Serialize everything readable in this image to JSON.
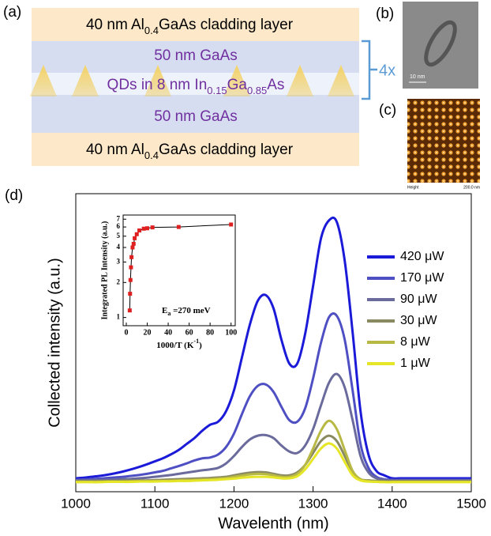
{
  "panel_labels": [
    "(a)",
    "(b)",
    "(c)",
    "(d)"
  ],
  "layers": {
    "top_cladding": [
      "40 nm Al",
      "0.4",
      "GaAs cladding layer"
    ],
    "gaas_top": "50 nm GaAs",
    "qd": [
      "QDs in 8 nm In",
      "0.15",
      "Ga",
      "0.85",
      "As"
    ],
    "gaas_bottom": "50 nm GaAs",
    "bottom_cladding": [
      "40 nm Al",
      "0.4",
      "GaAs cladding layer"
    ],
    "repeat": "4x"
  },
  "images": {
    "tem_scale": "10 nm",
    "afm_left": "Height",
    "afm_right": "200.0 nm"
  },
  "chart_data": [
    {
      "type": "line",
      "x_label": "Wavelenth (nm)",
      "y_label": "Collected intensity (a.u.)",
      "xlim": [
        1000,
        1500
      ],
      "xticks": [
        1000,
        1100,
        1200,
        1300,
        1400,
        1500
      ],
      "ylim": [
        0,
        10
      ],
      "legend": "right",
      "x": [
        1000,
        1010,
        1020,
        1030,
        1040,
        1050,
        1060,
        1070,
        1080,
        1090,
        1100,
        1110,
        1120,
        1130,
        1140,
        1150,
        1160,
        1170,
        1180,
        1190,
        1200,
        1210,
        1220,
        1230,
        1240,
        1250,
        1260,
        1270,
        1280,
        1290,
        1300,
        1310,
        1320,
        1330,
        1340,
        1350,
        1360,
        1370,
        1380,
        1390,
        1400,
        1410,
        1420,
        1430,
        1440,
        1450,
        1460,
        1470,
        1480,
        1490,
        1500
      ],
      "series": [
        {
          "name": "420 μW",
          "color": "#1a1ad8",
          "values": [
            0.45,
            0.47,
            0.5,
            0.53,
            0.57,
            0.62,
            0.68,
            0.75,
            0.83,
            0.92,
            1.02,
            1.12,
            1.25,
            1.4,
            1.6,
            1.8,
            2.05,
            2.25,
            2.35,
            2.7,
            3.4,
            4.5,
            5.6,
            6.4,
            6.6,
            6.15,
            5.1,
            4.3,
            4.3,
            5.3,
            6.9,
            8.5,
            9.1,
            9.05,
            7.75,
            5.35,
            2.7,
            1.25,
            0.7,
            0.55,
            0.45,
            0.45,
            0.45,
            0.45,
            0.45,
            0.45,
            0.45,
            0.45,
            0.45,
            0.45,
            0.45
          ]
        },
        {
          "name": "170 μW",
          "color": "#4f4fc4",
          "values": [
            0.4,
            0.41,
            0.42,
            0.44,
            0.46,
            0.48,
            0.5,
            0.53,
            0.56,
            0.6,
            0.65,
            0.7,
            0.78,
            0.86,
            0.95,
            1.05,
            1.12,
            1.15,
            1.25,
            1.5,
            1.95,
            2.6,
            3.2,
            3.55,
            3.6,
            3.35,
            2.85,
            2.4,
            2.35,
            2.8,
            3.8,
            5.0,
            5.85,
            5.9,
            5.1,
            3.4,
            1.6,
            0.8,
            0.5,
            0.42,
            0.4,
            0.4,
            0.4,
            0.4,
            0.4,
            0.4,
            0.4,
            0.4,
            0.4,
            0.4,
            0.4
          ]
        },
        {
          "name": "90 μW",
          "color": "#6a6a9c",
          "values": [
            0.38,
            0.38,
            0.39,
            0.39,
            0.4,
            0.41,
            0.42,
            0.43,
            0.45,
            0.47,
            0.5,
            0.53,
            0.56,
            0.6,
            0.64,
            0.68,
            0.72,
            0.75,
            0.8,
            0.95,
            1.2,
            1.5,
            1.75,
            1.88,
            1.9,
            1.8,
            1.55,
            1.35,
            1.3,
            1.55,
            2.1,
            2.9,
            3.65,
            3.95,
            3.5,
            2.4,
            1.2,
            0.65,
            0.45,
            0.4,
            0.38,
            0.38,
            0.38,
            0.38,
            0.38,
            0.38,
            0.38,
            0.38,
            0.38,
            0.38,
            0.38
          ]
        },
        {
          "name": "30 μW",
          "color": "#8a8a62",
          "values": [
            0.35,
            0.35,
            0.35,
            0.36,
            0.36,
            0.36,
            0.37,
            0.37,
            0.38,
            0.38,
            0.39,
            0.4,
            0.41,
            0.42,
            0.43,
            0.44,
            0.45,
            0.46,
            0.48,
            0.5,
            0.55,
            0.6,
            0.64,
            0.66,
            0.65,
            0.6,
            0.55,
            0.55,
            0.65,
            0.9,
            1.3,
            1.7,
            1.88,
            1.7,
            1.2,
            0.65,
            0.42,
            0.38,
            0.36,
            0.35,
            0.35,
            0.35,
            0.35,
            0.35,
            0.35,
            0.35,
            0.35,
            0.35,
            0.35,
            0.35,
            0.35
          ]
        },
        {
          "name": "8 μW",
          "color": "#b8b844",
          "values": [
            0.33,
            0.33,
            0.33,
            0.33,
            0.34,
            0.34,
            0.34,
            0.35,
            0.35,
            0.35,
            0.36,
            0.36,
            0.37,
            0.38,
            0.39,
            0.4,
            0.41,
            0.42,
            0.44,
            0.46,
            0.5,
            0.54,
            0.58,
            0.6,
            0.59,
            0.55,
            0.5,
            0.5,
            0.6,
            0.9,
            1.45,
            2.05,
            2.38,
            2.1,
            1.4,
            0.7,
            0.42,
            0.36,
            0.34,
            0.33,
            0.33,
            0.33,
            0.33,
            0.33,
            0.33,
            0.33,
            0.33,
            0.33,
            0.33,
            0.33,
            0.33
          ]
        },
        {
          "name": "1 μW",
          "color": "#e6e628",
          "values": [
            0.32,
            0.32,
            0.32,
            0.32,
            0.33,
            0.33,
            0.33,
            0.33,
            0.34,
            0.34,
            0.34,
            0.35,
            0.35,
            0.36,
            0.36,
            0.37,
            0.38,
            0.39,
            0.4,
            0.42,
            0.44,
            0.47,
            0.49,
            0.5,
            0.5,
            0.48,
            0.45,
            0.45,
            0.52,
            0.75,
            1.1,
            1.45,
            1.62,
            1.45,
            1.0,
            0.55,
            0.38,
            0.34,
            0.33,
            0.32,
            0.32,
            0.32,
            0.32,
            0.32,
            0.32,
            0.32,
            0.32,
            0.32,
            0.32,
            0.32,
            0.32
          ]
        }
      ]
    },
    {
      "type": "scatter",
      "y_label": "Integrated PL Intensity (a.u.)",
      "x_label": [
        "1000/T (K",
        "-1",
        ")"
      ],
      "annotation": [
        "E",
        "a",
        " =270 meV"
      ],
      "color": "#e02020",
      "log_y": true,
      "xlim": [
        -3,
        104
      ],
      "xticks": [
        0,
        20,
        40,
        60,
        80,
        100
      ],
      "ylim": [
        0.85,
        7.6
      ],
      "yticks": [
        1,
        2,
        3,
        4,
        5,
        6,
        7
      ],
      "x": [
        3.3,
        3.6,
        4,
        4.5,
        5,
        6,
        7,
        8,
        10,
        12.5,
        16.7,
        20,
        25,
        50,
        100
      ],
      "values": [
        1.15,
        1.6,
        2.1,
        2.7,
        3.3,
        4,
        4.3,
        4.8,
        5.2,
        5.6,
        5.8,
        5.85,
        5.95,
        6.0,
        6.3
      ]
    }
  ]
}
